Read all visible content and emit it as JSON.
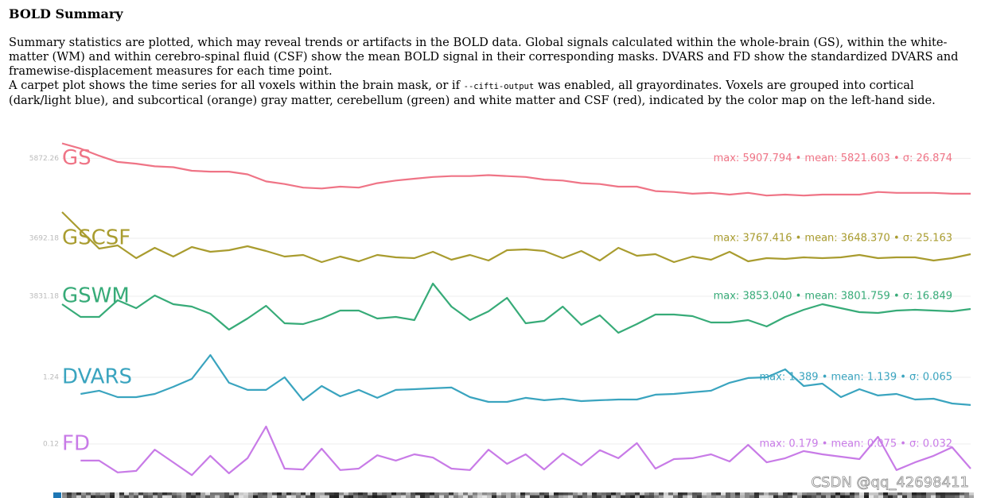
{
  "document": {
    "title": "BOLD Summary",
    "paragraphs": [
      {
        "text": "Summary statistics are plotted, which may reveal trends or artifacts in the BOLD data. Global signals calculated within the whole-brain (GS), within the white-matter (WM) and within cerebro-spinal fluid (CSF) show the mean BOLD signal in their corresponding masks. DVARS and FD show the standardized DVARS and framewise-displacement measures for each time point."
      },
      {
        "before": "A carpet plot shows the time series for all voxels within the brain mask, or if ",
        "code": "--cifti-output",
        "after": " was enabled, all grayordinates. Voxels are grouped into cortical (dark/light blue), and subcortical (orange) gray matter, cerebellum (green) and white matter and CSF (red), indicated by the color map on the left-hand side."
      }
    ],
    "watermark": "CSDN @qq_42698411"
  },
  "chart_data": [
    {
      "type": "line",
      "name": "GS",
      "stats": "max: 5907.794 • mean: 5821.603 • σ: 26.874",
      "color": "#ef7486",
      "ylim": [
        5769.8,
        5916.2
      ],
      "yticks": [
        5872.26
      ],
      "values": [
        5907.8,
        5895.3,
        5878.5,
        5863.9,
        5859.7,
        5853.5,
        5851.4,
        5843.0,
        5840.9,
        5840.9,
        5834.6,
        5817.9,
        5811.7,
        5803.3,
        5801.2,
        5805.4,
        5803.3,
        5813.7,
        5820.0,
        5824.2,
        5828.4,
        5830.5,
        5830.5,
        5832.6,
        5830.5,
        5828.4,
        5822.1,
        5820.0,
        5813.7,
        5811.7,
        5805.4,
        5805.4,
        5794.9,
        5792.8,
        5788.7,
        5790.8,
        5786.6,
        5790.8,
        5784.5,
        5786.6,
        5784.5,
        5786.6,
        5786.6,
        5786.6,
        5792.8,
        5790.8,
        5790.8,
        5790.8,
        5788.7,
        5788.7
      ]
    },
    {
      "type": "line",
      "name": "GSCSF",
      "stats": "max: 3767.416 • mean: 3648.370 • σ: 25.163",
      "color": "#a99c2f",
      "ylim": [
        3601.0,
        3778.8
      ],
      "yticks": [
        3692.18
      ],
      "values": [
        3767.4,
        3715.0,
        3662.5,
        3671.7,
        3635.2,
        3664.8,
        3639.7,
        3667.1,
        3653.4,
        3658.0,
        3669.4,
        3655.7,
        3639.7,
        3644.3,
        3623.8,
        3639.7,
        3626.1,
        3644.3,
        3637.5,
        3635.2,
        3653.4,
        3630.6,
        3644.3,
        3628.3,
        3658.0,
        3660.3,
        3655.7,
        3635.2,
        3655.7,
        3628.3,
        3664.8,
        3642.0,
        3646.6,
        3623.8,
        3639.7,
        3630.6,
        3653.4,
        3626.1,
        3635.2,
        3632.9,
        3637.5,
        3635.2,
        3637.5,
        3644.3,
        3635.2,
        3637.5,
        3637.5,
        3628.3,
        3635.2,
        3646.6
      ]
    },
    {
      "type": "line",
      "name": "GSWM",
      "stats": "max: 3853.040 • mean: 3801.759 • σ: 16.849",
      "color": "#37ab78",
      "ylim": [
        3756.0,
        3862.6
      ],
      "yticks": [
        3831.18
      ],
      "values": [
        3817.5,
        3795.7,
        3795.7,
        3824.3,
        3810.7,
        3832.5,
        3817.5,
        3813.4,
        3801.1,
        3773.8,
        3792.9,
        3814.8,
        3784.7,
        3783.4,
        3792.9,
        3806.6,
        3806.6,
        3792.9,
        3795.7,
        3790.2,
        3853.0,
        3813.4,
        3790.2,
        3805.2,
        3828.4,
        3784.7,
        3788.8,
        3813.4,
        3782.0,
        3798.4,
        3768.3,
        3783.4,
        3799.8,
        3799.8,
        3797.0,
        3786.1,
        3786.1,
        3790.2,
        3779.3,
        3795.7,
        3808.0,
        3817.5,
        3810.7,
        3803.9,
        3802.5,
        3806.6,
        3808.0,
        3806.6,
        3805.2,
        3809.3
      ]
    },
    {
      "type": "line",
      "name": "DVARS",
      "stats": "max: 1.389 • mean: 1.139 • σ: 0.065",
      "color": "#3aa4bf",
      "ylim": [
        1.011,
        1.426
      ],
      "yticks": [
        1.24
      ],
      "values": [
        null,
        1.128,
        1.15,
        1.107,
        1.107,
        1.128,
        1.176,
        1.229,
        1.389,
        1.203,
        1.155,
        1.155,
        1.24,
        1.086,
        1.181,
        1.112,
        1.155,
        1.102,
        1.155,
        1.16,
        1.166,
        1.171,
        1.107,
        1.075,
        1.075,
        1.102,
        1.086,
        1.096,
        1.08,
        1.086,
        1.091,
        1.091,
        1.123,
        1.128,
        1.139,
        1.15,
        1.203,
        1.235,
        1.24,
        1.293,
        1.181,
        1.197,
        1.107,
        1.16,
        1.118,
        1.128,
        1.091,
        1.096,
        1.064,
        1.054
      ]
    },
    {
      "type": "line",
      "name": "FD",
      "stats": "max: 0.179 • mean: 0.075 • σ: 0.032",
      "color": "#c87be7",
      "ylim": [
        -0.006,
        0.203
      ],
      "yticks": [
        0.12
      ],
      "values": [
        null,
        0.064,
        0.064,
        0.024,
        0.029,
        0.101,
        0.058,
        0.015,
        0.08,
        0.021,
        0.072,
        0.179,
        0.037,
        0.034,
        0.104,
        0.032,
        0.037,
        0.082,
        0.064,
        0.085,
        0.074,
        0.037,
        0.032,
        0.101,
        0.053,
        0.085,
        0.034,
        0.088,
        0.048,
        0.099,
        0.072,
        0.123,
        0.037,
        0.069,
        0.072,
        0.085,
        0.061,
        0.117,
        0.058,
        0.072,
        0.096,
        0.085,
        0.077,
        0.069,
        0.144,
        0.032,
        0.058,
        0.08,
        0.109,
        0.037
      ]
    }
  ]
}
